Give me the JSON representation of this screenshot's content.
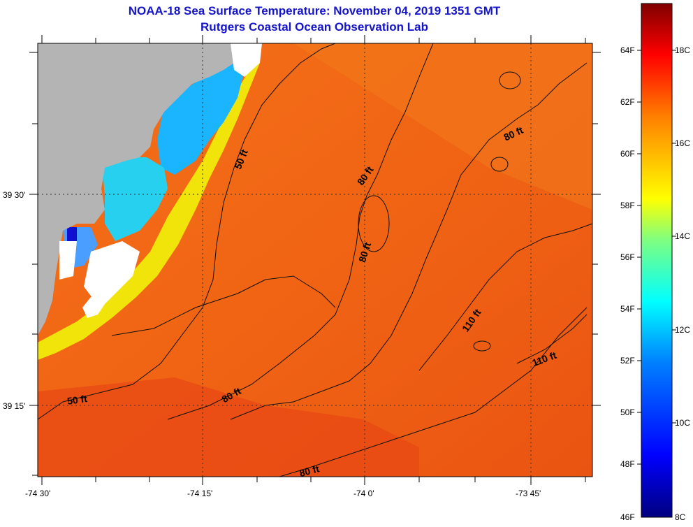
{
  "header": {
    "title": "NOAA-18 Sea Surface Temperature:  November 04, 2019 1351 GMT",
    "subtitle": "Rutgers Coastal Ocean Observation Lab"
  },
  "axes": {
    "x_labels": [
      "-74 30'",
      "-74 15'",
      "-74 0'",
      "-73 45'"
    ],
    "y_labels": [
      "39 30'",
      "39 15'"
    ]
  },
  "contour_labels": [
    "50 ft",
    "80 ft",
    "80 ft",
    "80 ft",
    "80 ft",
    "110 ft",
    "110 ft",
    "50 ft",
    "80 ft"
  ],
  "colorbar": {
    "fahrenheit_labels": [
      "64F",
      "62F",
      "60F",
      "58F",
      "56F",
      "54F",
      "52F",
      "50F",
      "48F",
      "46F"
    ],
    "celsius_labels": [
      "18C",
      "16C",
      "14C",
      "12C",
      "10C",
      "8C"
    ],
    "colors": [
      "#00007f",
      "#0000ff",
      "#007fff",
      "#00ffff",
      "#7fff7f",
      "#ffff00",
      "#ff7f00",
      "#ff0000",
      "#7f0000"
    ]
  },
  "colors": {
    "title": "#1414c8",
    "land": "#b4b4b4",
    "sea_main": "#f06414",
    "sea_warm": "#e84814",
    "nearshore_cool": "#00b4ff",
    "nearshore_yellow": "#f0f000"
  }
}
